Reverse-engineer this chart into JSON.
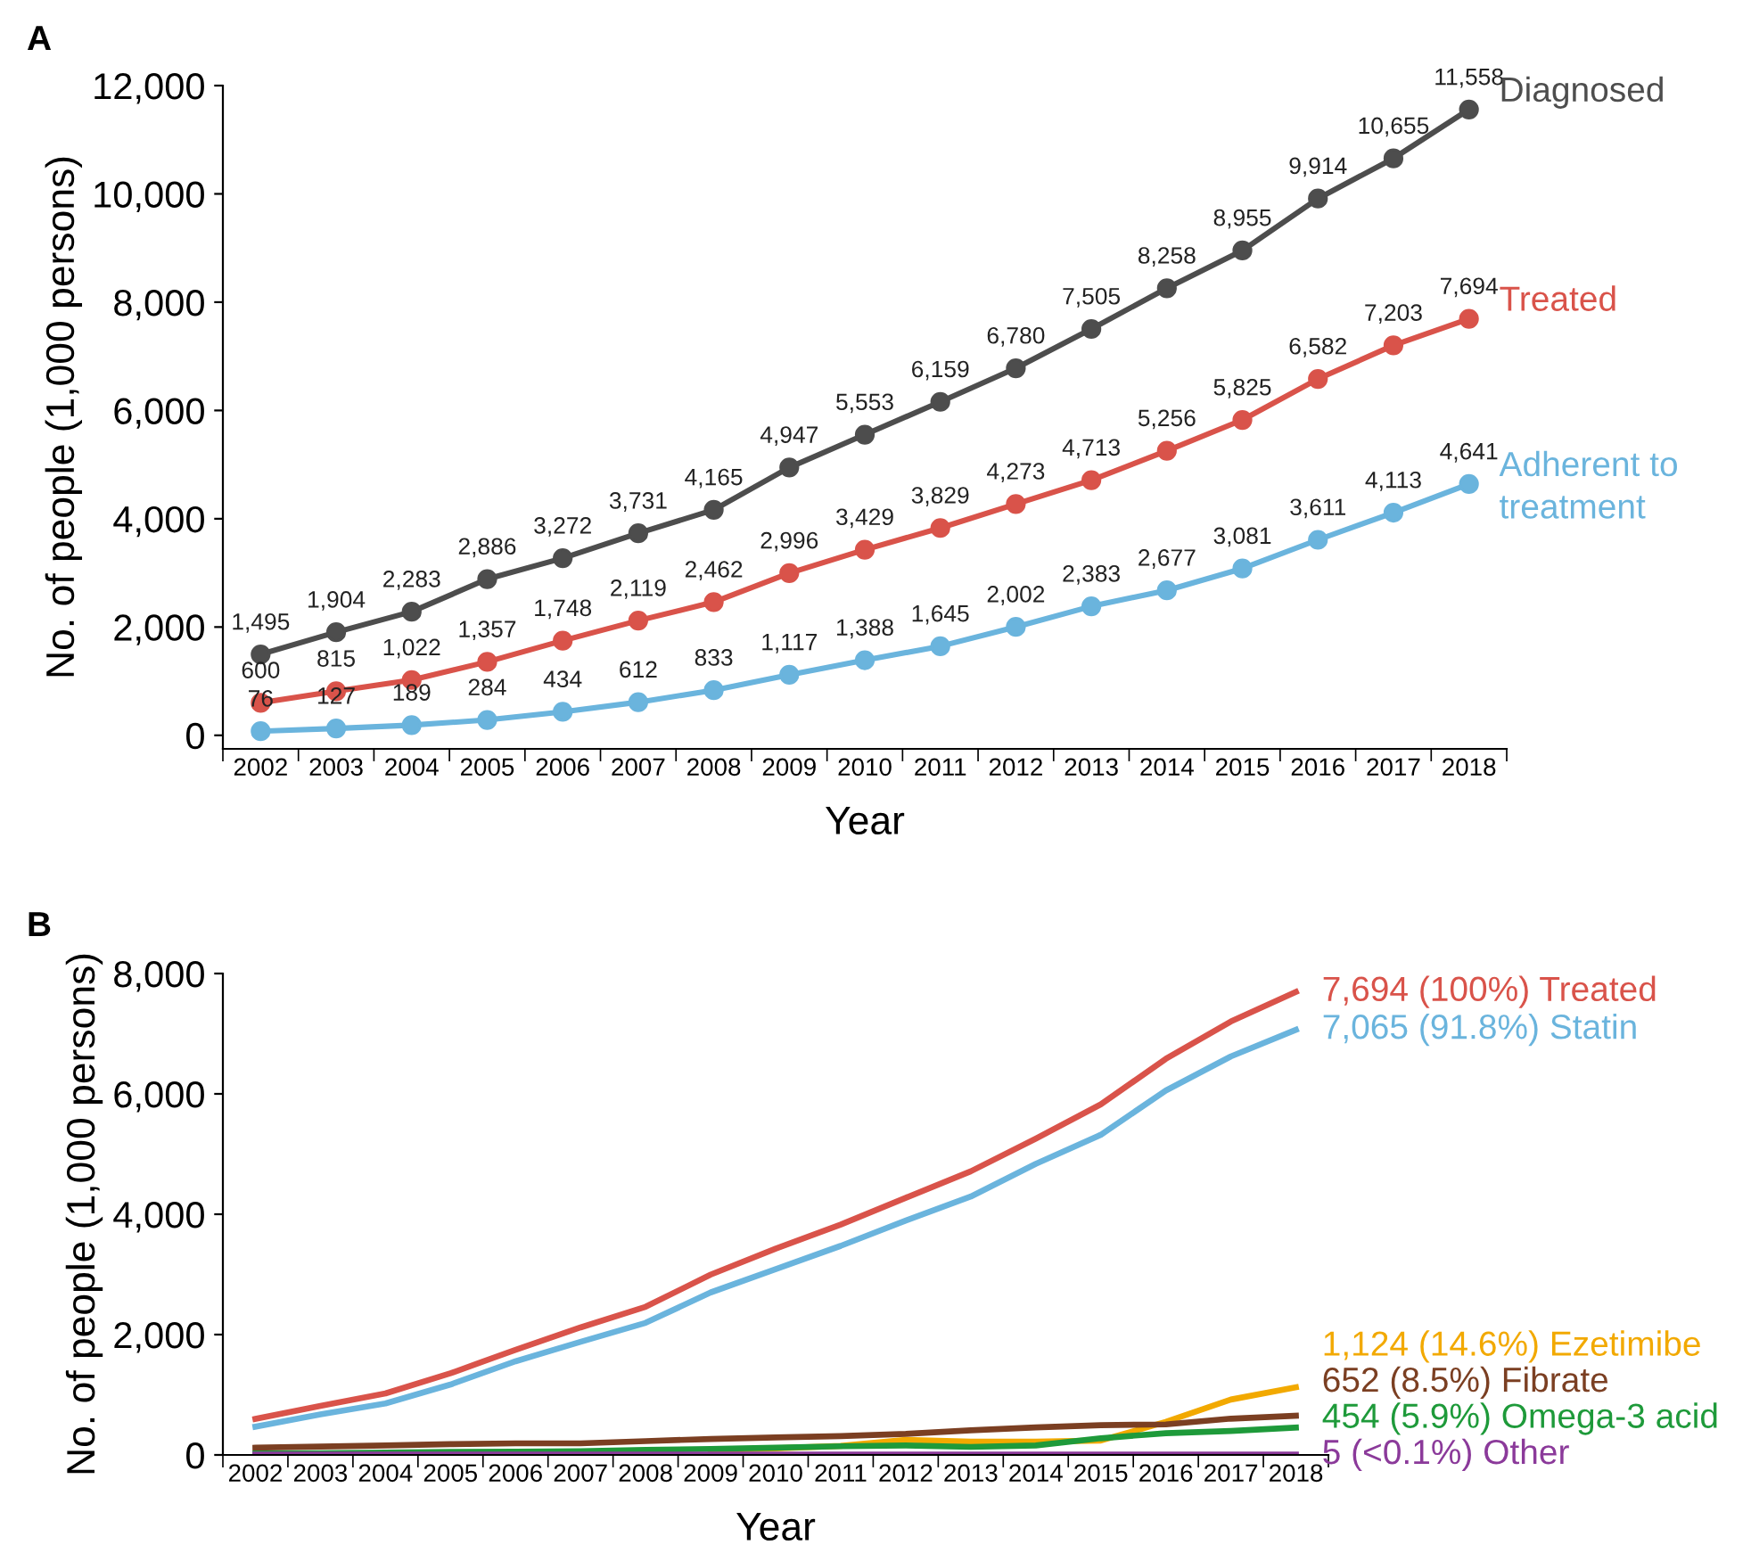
{
  "chart_data": [
    {
      "type": "line",
      "annotations": [
        "A"
      ],
      "xlabel": "Year",
      "ylabel": "No. of people (1,000 persons)",
      "categories": [
        "2002",
        "2003",
        "2004",
        "2005",
        "2006",
        "2007",
        "2008",
        "2009",
        "2010",
        "2011",
        "2012",
        "2013",
        "2014",
        "2015",
        "2016",
        "2017",
        "2018"
      ],
      "ylim": [
        -250,
        12000
      ],
      "yticks": [
        {
          "value": 0,
          "label": "0"
        },
        {
          "value": 2000,
          "label": "2,000"
        },
        {
          "value": 4000,
          "label": "4,000"
        },
        {
          "value": 6000,
          "label": "6,000"
        },
        {
          "value": 8000,
          "label": "8,000"
        },
        {
          "value": 10000,
          "label": "10,000"
        },
        {
          "value": 12000,
          "label": "12,000"
        }
      ],
      "marker": "circle",
      "grid": false,
      "legend": false,
      "series": [
        {
          "name": "Diagnosed",
          "color": "#4d4d4d",
          "values": [
            1495,
            1904,
            2283,
            2886,
            3272,
            3731,
            4165,
            4947,
            5553,
            6159,
            6780,
            7505,
            8258,
            8955,
            9914,
            10655,
            11558
          ],
          "value_labels": [
            "1,495",
            "1,904",
            "2,283",
            "2,886",
            "3,272",
            "3,731",
            "4,165",
            "4,947",
            "5,553",
            "6,159",
            "6,780",
            "7,505",
            "8,258",
            "8,955",
            "9,914",
            "10,655",
            "11,558"
          ]
        },
        {
          "name": "Treated",
          "color": "#d9534a",
          "values": [
            600,
            815,
            1022,
            1357,
            1748,
            2119,
            2462,
            2996,
            3429,
            3829,
            4273,
            4713,
            5256,
            5825,
            6582,
            7203,
            7694
          ],
          "value_labels": [
            "600",
            "815",
            "1,022",
            "1,357",
            "1,748",
            "2,119",
            "2,462",
            "2,996",
            "3,429",
            "3,829",
            "4,273",
            "4,713",
            "5,256",
            "5,825",
            "6,582",
            "7,203",
            "7,694"
          ]
        },
        {
          "name": "Adherent to\ntreatment",
          "color": "#6ab4dd",
          "values": [
            76,
            127,
            189,
            284,
            434,
            612,
            833,
            1117,
            1388,
            1645,
            2002,
            2383,
            2677,
            3081,
            3611,
            4113,
            4641
          ],
          "value_labels": [
            "76",
            "127",
            "189",
            "284",
            "434",
            "612",
            "833",
            "1,117",
            "1,388",
            "1,645",
            "2,002",
            "2,383",
            "2,677",
            "3,081",
            "3,611",
            "4,113",
            "4,641"
          ]
        }
      ]
    },
    {
      "type": "line",
      "annotations": [
        "B"
      ],
      "xlabel": "Year",
      "ylabel": "No. of people (1,000 persons)",
      "categories": [
        "2002",
        "2003",
        "2004",
        "2005",
        "2006",
        "2007",
        "2008",
        "2009",
        "2010",
        "2011",
        "2012",
        "2013",
        "2014",
        "2015",
        "2016",
        "2017",
        "2018"
      ],
      "ylim": [
        0,
        8000
      ],
      "yticks": [
        {
          "value": 0,
          "label": "0"
        },
        {
          "value": 2000,
          "label": "2,000"
        },
        {
          "value": 4000,
          "label": "4,000"
        },
        {
          "value": 6000,
          "label": "6,000"
        },
        {
          "value": 8000,
          "label": "8,000"
        }
      ],
      "marker": "none",
      "grid": false,
      "legend": false,
      "series": [
        {
          "name": "7,694 (100%) Treated",
          "color": "#d9534a",
          "values": [
            600,
            815,
            1022,
            1357,
            1748,
            2119,
            2462,
            2996,
            3429,
            3829,
            4273,
            4713,
            5256,
            5825,
            6582,
            7203,
            7694
          ]
        },
        {
          "name": "7,065 (91.8%) Statin",
          "color": "#6ab4dd",
          "values": [
            470,
            675,
            856,
            1170,
            1556,
            1880,
            2195,
            2700,
            3088,
            3474,
            3896,
            4294,
            4837,
            5320,
            6055,
            6622,
            7065
          ]
        },
        {
          "name": "1,124 (14.6%) Ezetimibe",
          "color": "#f2a900",
          "values": [
            null,
            null,
            null,
            null,
            null,
            null,
            null,
            80,
            110,
            150,
            250,
            220,
            220,
            240,
            550,
            920,
            1124
          ]
        },
        {
          "name": "652 (8.5%) Fibrate",
          "color": "#7b3f22",
          "values": [
            120,
            140,
            157,
            180,
            193,
            193,
            230,
            265,
            290,
            314,
            350,
            410,
            458,
            495,
            507,
            603,
            652
          ]
        },
        {
          "name": "454 (5.9%) Omega-3 acid",
          "color": "#1e9a3a",
          "values": [
            25,
            30,
            40,
            50,
            55,
            60,
            85,
            100,
            120,
            145,
            157,
            133,
            157,
            277,
            362,
            398,
            454
          ]
        },
        {
          "name": "5 (<0.1%) Other",
          "color": "#8b3a9a",
          "values": [
            5,
            5,
            5,
            5,
            5,
            5,
            5,
            5,
            5,
            5,
            5,
            5,
            5,
            5,
            5,
            5,
            5
          ]
        }
      ]
    }
  ]
}
